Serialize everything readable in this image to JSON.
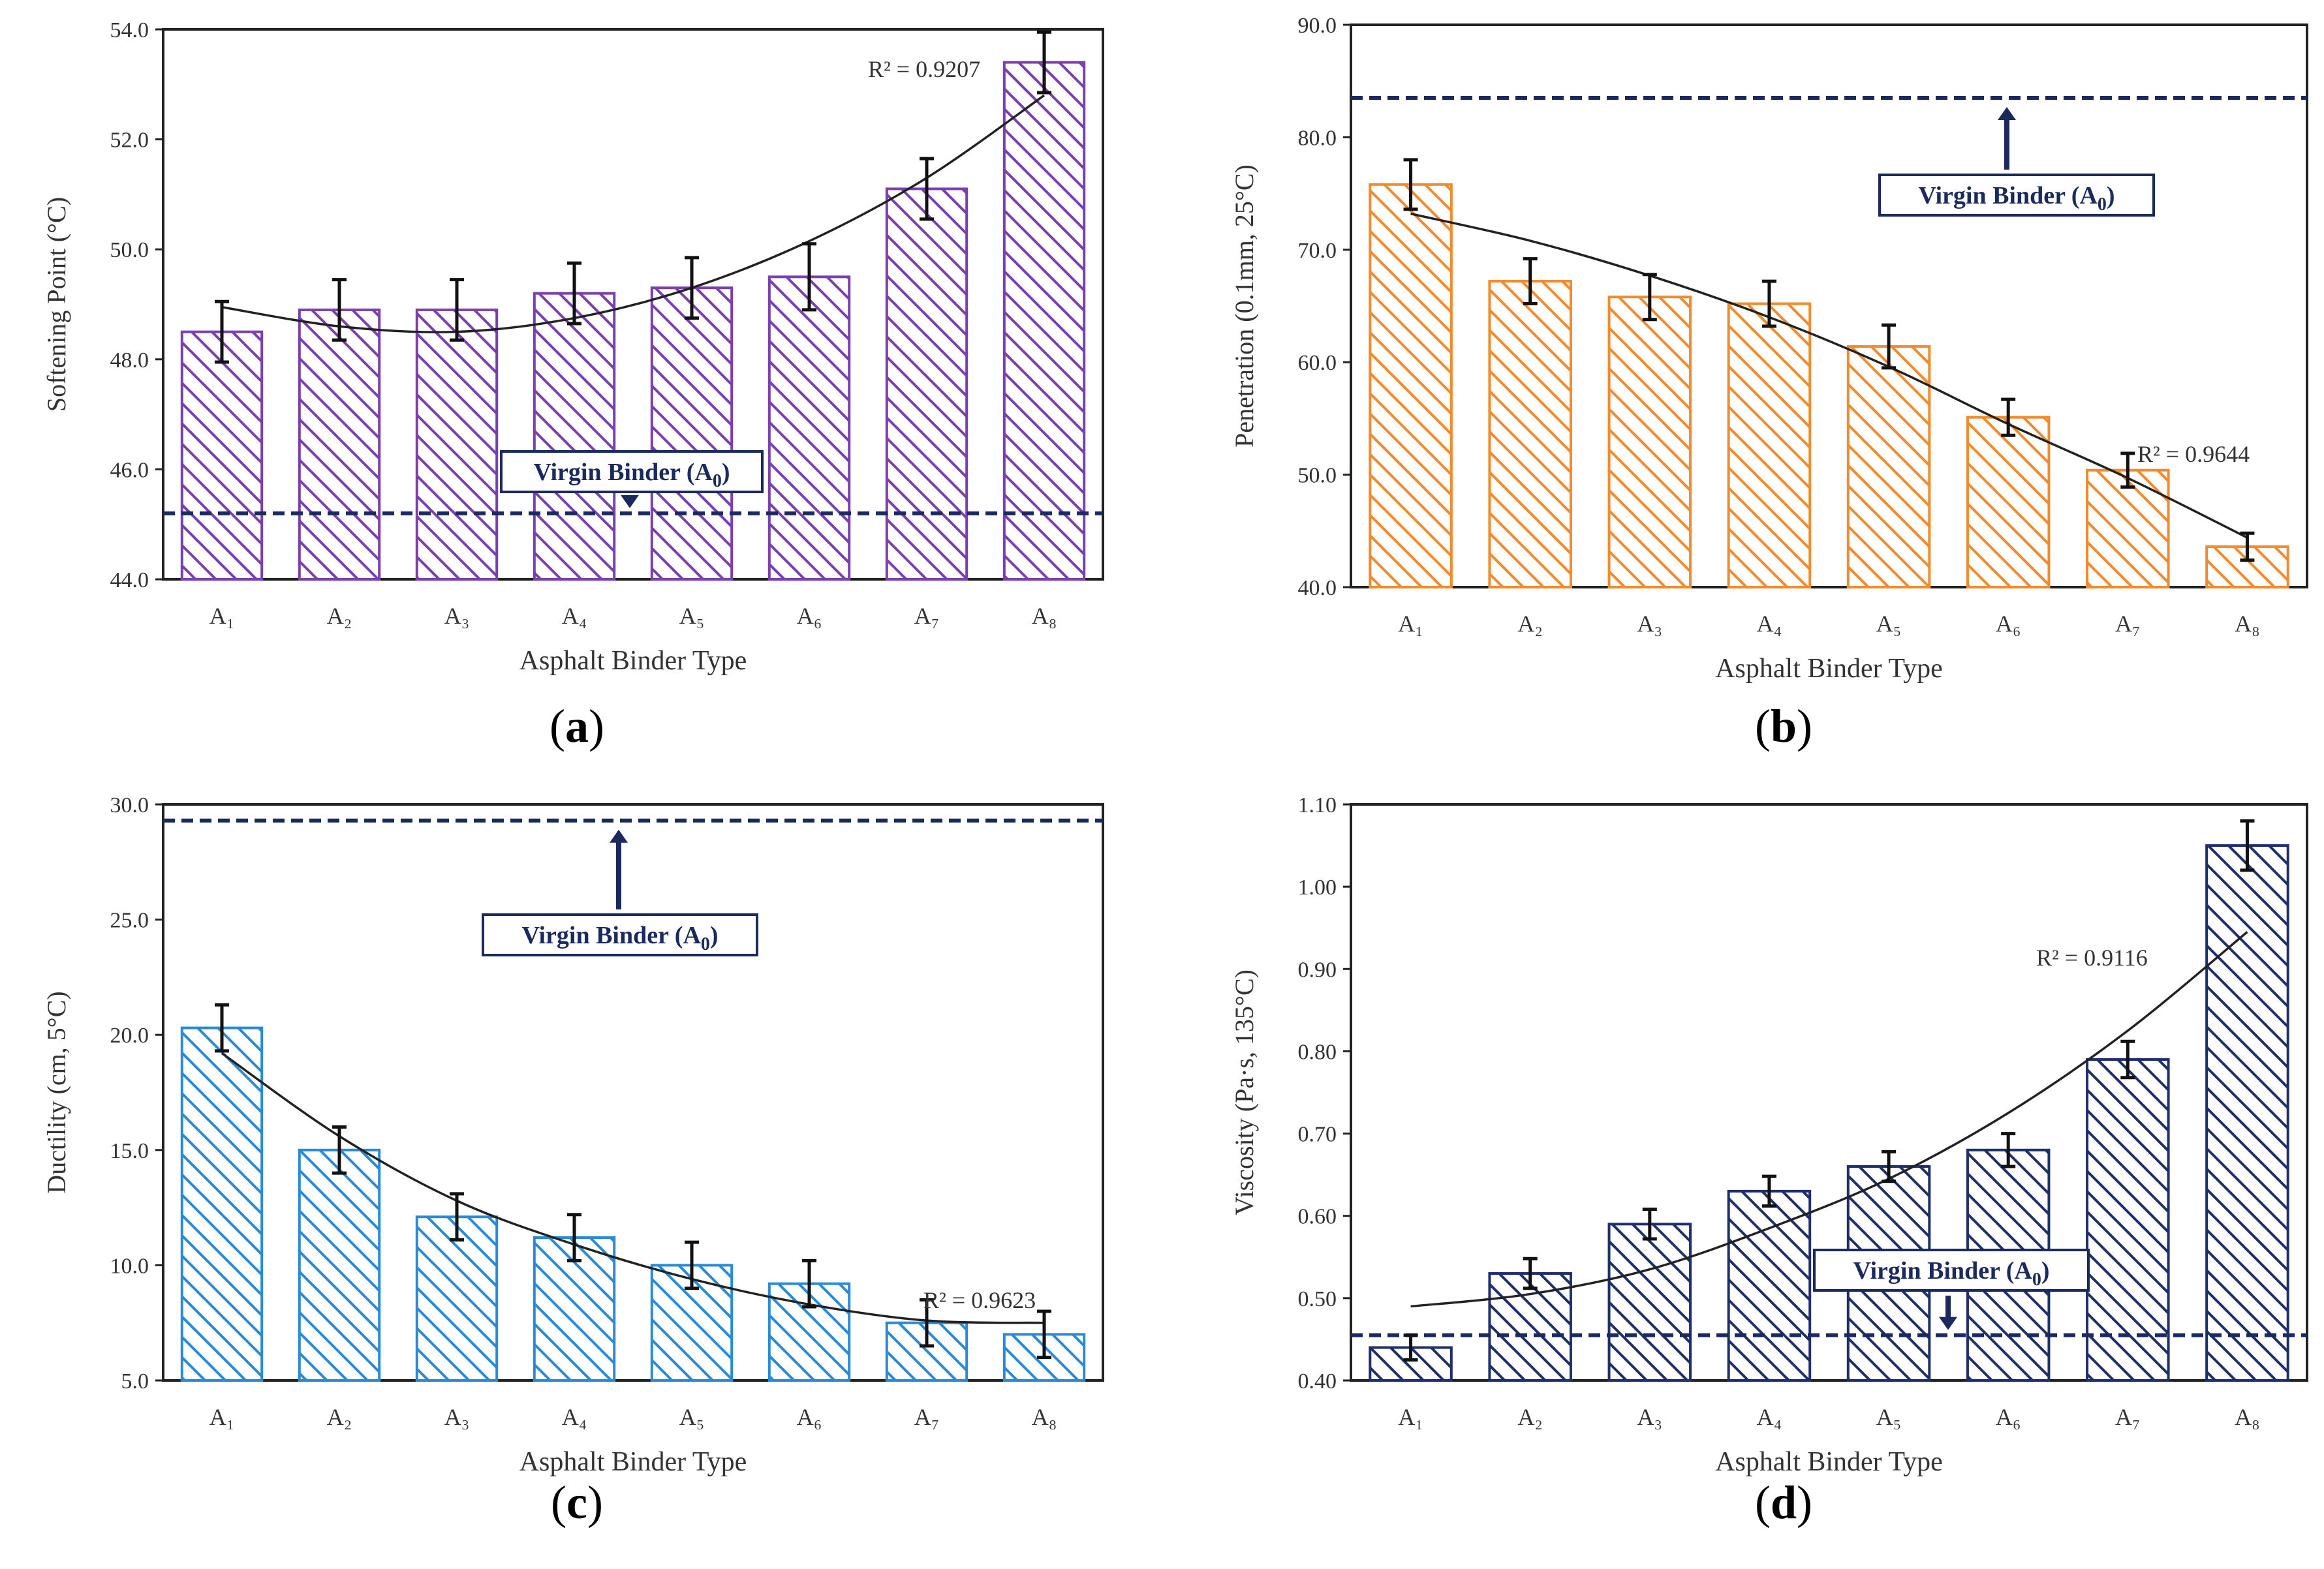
{
  "chart_data": [
    {
      "type": "bar",
      "panel_label": "a",
      "categories": [
        "A₁",
        "A₂",
        "A₃",
        "A₄",
        "A₅",
        "A₆",
        "A₇",
        "A₈"
      ],
      "values": [
        48.5,
        48.9,
        48.9,
        49.2,
        49.3,
        49.5,
        51.1,
        53.4
      ],
      "error_bars": [
        0.55,
        0.55,
        0.55,
        0.55,
        0.55,
        0.6,
        0.55,
        0.55
      ],
      "xlabel": "Asphalt Binder Type",
      "ylabel": "Softening Point (°C)",
      "ylim": [
        44.0,
        54.0
      ],
      "yticks": [
        "44.0",
        "46.0",
        "48.0",
        "50.0",
        "52.0",
        "54.0"
      ],
      "ytick_step": 2.0,
      "bar_color": "#7a3fb0",
      "trendline": {
        "type": "polynomial",
        "fitted": [
          48.95,
          48.6,
          48.5,
          48.75,
          49.3,
          50.15,
          51.3,
          52.8
        ],
        "r2_label": "R² = 0.9207"
      },
      "reference_line": {
        "value": 45.2,
        "label": "Virgin Binder (A",
        "label_sub": "0",
        "label_end": ")",
        "arrow": "down"
      }
    },
    {
      "type": "bar",
      "panel_label": "b",
      "categories": [
        "A₁",
        "A₂",
        "A₃",
        "A₄",
        "A₅",
        "A₆",
        "A₇",
        "A₈"
      ],
      "values": [
        75.8,
        67.2,
        65.8,
        65.2,
        61.4,
        55.1,
        50.4,
        43.6
      ],
      "error_bars": [
        2.2,
        2.0,
        2.0,
        2.0,
        1.9,
        1.6,
        1.5,
        1.2
      ],
      "xlabel": "Asphalt Binder Type",
      "ylabel": "Penetration (0.1mm, 25°C)",
      "ylim": [
        40.0,
        90.0
      ],
      "yticks": [
        "40.0",
        "50.0",
        "60.0",
        "70.0",
        "80.0",
        "90.0"
      ],
      "ytick_step": 10.0,
      "bar_color": "#f28a2e",
      "trendline": {
        "type": "polynomial",
        "fitted": [
          73.2,
          70.8,
          67.7,
          64.0,
          59.6,
          54.5,
          49.7,
          44.4
        ],
        "r2_label": "R² = 0.9644"
      },
      "reference_line": {
        "value": 83.5,
        "label": "Virgin Binder (A",
        "label_sub": "0",
        "label_end": ")",
        "arrow": "up"
      }
    },
    {
      "type": "bar",
      "panel_label": "c",
      "categories": [
        "A₁",
        "A₂",
        "A₃",
        "A₄",
        "A₅",
        "A₆",
        "A₇",
        "A₈"
      ],
      "values": [
        20.3,
        15.0,
        12.1,
        11.2,
        10.0,
        9.2,
        7.5,
        7.0
      ],
      "error_bars": [
        1.0,
        1.0,
        1.0,
        1.0,
        1.0,
        1.0,
        1.0,
        1.0
      ],
      "xlabel": "Asphalt Binder Type",
      "ylabel": "Ductility (cm, 5°C)",
      "ylim": [
        5.0,
        30.0
      ],
      "yticks": [
        "5.0",
        "10.0",
        "15.0",
        "20.0",
        "25.0",
        "30.0"
      ],
      "ytick_step": 5.0,
      "bar_color": "#2a8ad8",
      "trendline": {
        "type": "polynomial",
        "fitted": [
          19.2,
          15.6,
          12.8,
          10.9,
          9.4,
          8.3,
          7.6,
          7.5
        ],
        "r2_label": "R² = 0.9623"
      },
      "reference_line": {
        "value": 29.3,
        "label": "Virgin Binder (A",
        "label_sub": "0",
        "label_end": ")",
        "arrow": "up"
      }
    },
    {
      "type": "bar",
      "panel_label": "d",
      "categories": [
        "A₁",
        "A₂",
        "A₃",
        "A₄",
        "A₅",
        "A₆",
        "A₇",
        "A₈"
      ],
      "values": [
        0.44,
        0.53,
        0.59,
        0.63,
        0.66,
        0.68,
        0.79,
        1.05
      ],
      "error_bars": [
        0.015,
        0.018,
        0.018,
        0.018,
        0.018,
        0.02,
        0.022,
        0.03
      ],
      "xlabel": "Asphalt Binder Type",
      "ylabel": "Viscosity (Pa·s, 135°C)",
      "ylim": [
        0.4,
        1.1
      ],
      "yticks": [
        "0.40",
        "0.50",
        "0.60",
        "0.70",
        "0.80",
        "0.90",
        "1.00",
        "1.10"
      ],
      "ytick_step": 0.1,
      "bar_color": "#1e2f6b",
      "trendline": {
        "type": "polynomial",
        "fitted": [
          0.49,
          0.505,
          0.535,
          0.585,
          0.645,
          0.725,
          0.825,
          0.945
        ],
        "r2_label": "R² = 0.9116"
      },
      "reference_line": {
        "value": 0.455,
        "label": "Virgin Binder (A",
        "label_sub": "0",
        "label_end": ")",
        "arrow": "down"
      }
    }
  ]
}
